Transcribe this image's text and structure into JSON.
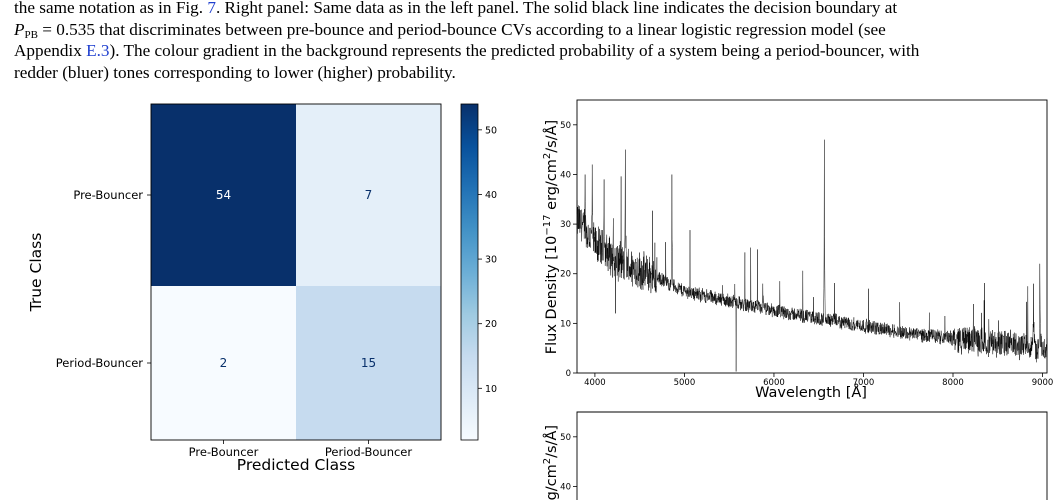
{
  "caption": {
    "line1": "the same notation as in Fig. ",
    "fig_ref": "7",
    "line1_rest": ". Right panel: Same data as in the left panel. The solid black line indicates the decision boundary at",
    "pb_symbol": "P",
    "pb_sub": "PB",
    "line2": " = 0.535 that discriminates between pre-bounce and period-bounce CVs according to a linear logistic regression model (see",
    "line3_a": "Appendix ",
    "appendix_ref": "E.3",
    "line3_b": "). The colour gradient in the background represents the predicted probability of a system being a period-bouncer, with",
    "line4": "redder (bluer) tones corresponding to lower (higher) probability."
  },
  "chart_data": [
    {
      "type": "heatmap",
      "title": "",
      "xlabel": "Predicted Class",
      "ylabel": "True Class",
      "x_categories": [
        "Pre-Bouncer",
        "Period-Bouncer"
      ],
      "y_categories": [
        "Pre-Bouncer",
        "Period-Bouncer"
      ],
      "values": [
        [
          54,
          7
        ],
        [
          2,
          15
        ]
      ],
      "colormap": "Blues",
      "colorbar": {
        "ticks": [
          10,
          20,
          30,
          40,
          50
        ],
        "range": [
          2,
          54
        ]
      }
    },
    {
      "type": "line",
      "title": "",
      "xlabel": "Wavelength [Å]",
      "ylabel": "Flux Density [10",
      "ylabel_exp": "−17",
      "ylabel_unit": " erg/cm",
      "ylabel_unit_exp": "2",
      "ylabel_tail": "/s/Å]",
      "xlim": [
        3800,
        9050
      ],
      "ylim": [
        0,
        55
      ],
      "xticks": [
        4000,
        5000,
        6000,
        7000,
        8000,
        9000
      ],
      "yticks": [
        0,
        10,
        20,
        30,
        40,
        50
      ],
      "continuum": {
        "x": [
          3800,
          4000,
          4300,
          4600,
          5000,
          5500,
          6000,
          6500,
          7000,
          7500,
          8000,
          8500,
          9000
        ],
        "y": [
          31,
          26,
          22,
          20,
          16.5,
          14.5,
          12.5,
          11,
          9.5,
          8,
          7,
          6,
          5
        ]
      },
      "emission_lines": [
        {
          "x": 3889,
          "y": 40
        },
        {
          "x": 3970,
          "y": 42
        },
        {
          "x": 4102,
          "y": 39
        },
        {
          "x": 4341,
          "y": 45
        },
        {
          "x": 4861,
          "y": 40
        },
        {
          "x": 5876,
          "y": 18
        },
        {
          "x": 6563,
          "y": 47
        },
        {
          "x": 6678,
          "y": 12
        },
        {
          "x": 8900,
          "y": 18
        },
        {
          "x": 8970,
          "y": 22
        }
      ],
      "absorption_dips": [
        {
          "x": 4230,
          "y": 12
        },
        {
          "x": 5577,
          "y": 0
        }
      ]
    },
    {
      "type": "line",
      "title": "",
      "ylabel_visible": "erg/cm",
      "ylabel_visible_exp": "2",
      "ylabel_visible_tail": "/s/Å]",
      "yticks_visible": [
        40,
        50
      ]
    }
  ]
}
